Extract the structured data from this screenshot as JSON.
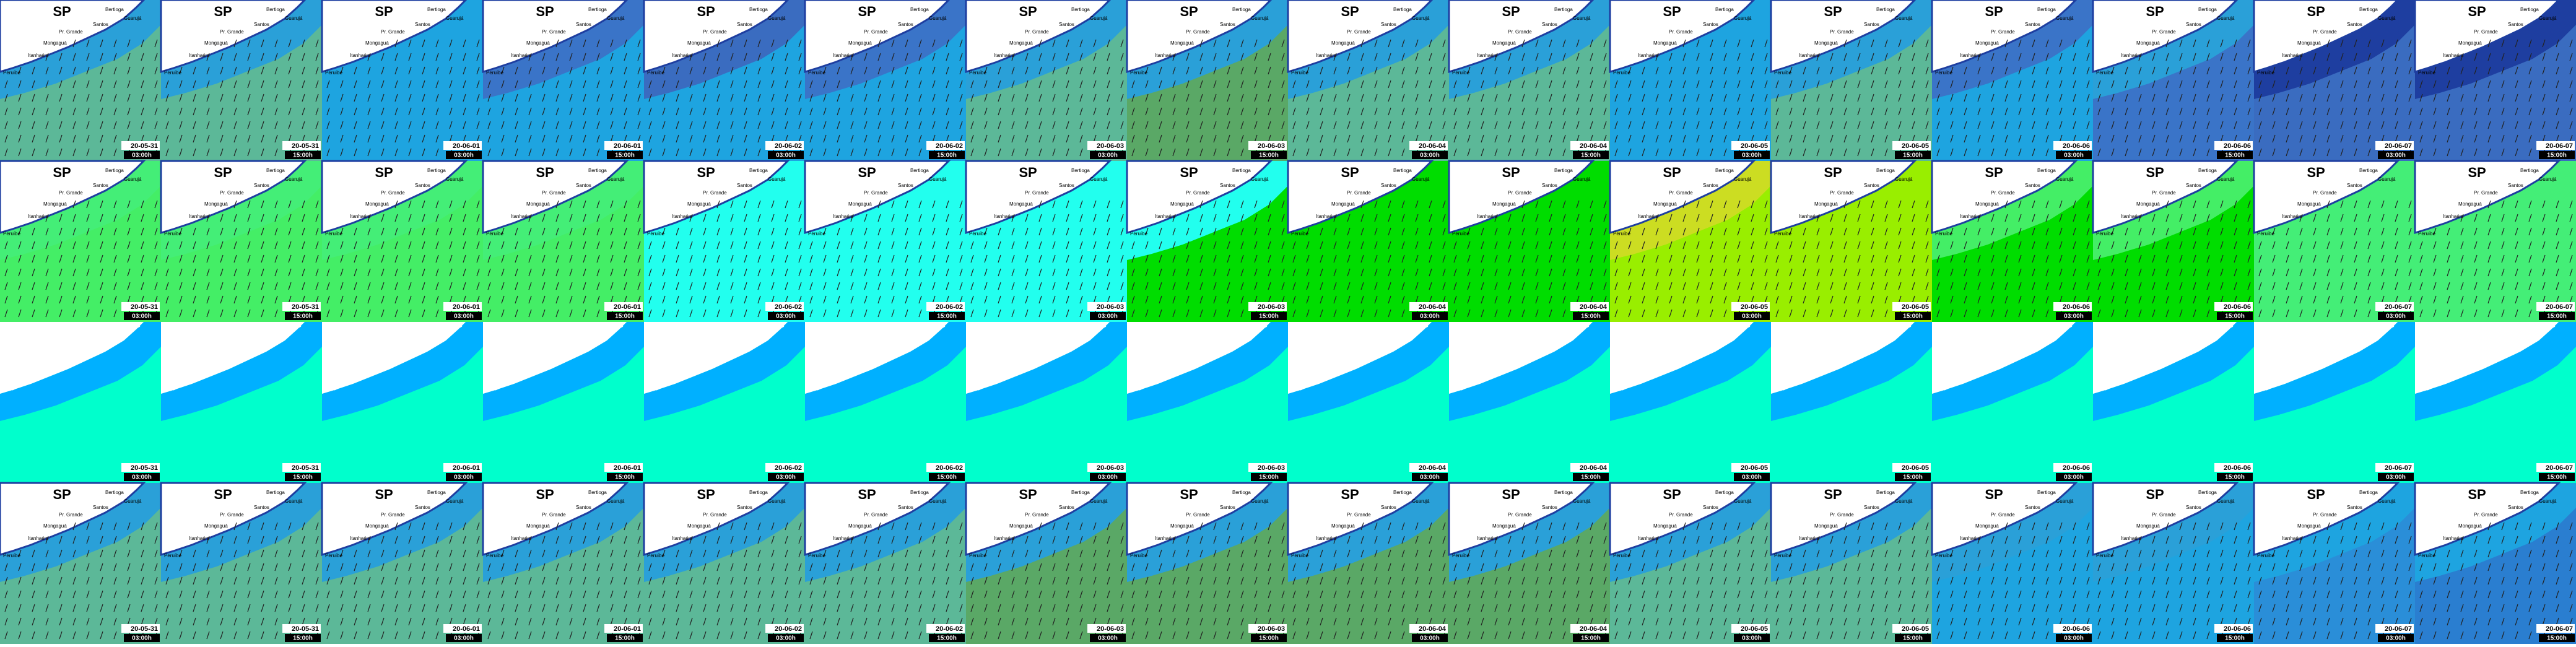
{
  "region": "SP",
  "places": [
    "Bertioga",
    "Guarujá",
    "Santos",
    "Pr. Grande",
    "Mongaguá",
    "Itanhaém",
    "Peruíbe"
  ],
  "frames": [
    {
      "date": "20-05-31",
      "time": "03:00h"
    },
    {
      "date": "20-05-31",
      "time": "15:00h"
    },
    {
      "date": "20-06-01",
      "time": "03:00h"
    },
    {
      "date": "20-06-01",
      "time": "15:00h"
    },
    {
      "date": "20-06-02",
      "time": "03:00h"
    },
    {
      "date": "20-06-02",
      "time": "15:00h"
    },
    {
      "date": "20-06-03",
      "time": "03:00h"
    },
    {
      "date": "20-06-03",
      "time": "15:00h"
    },
    {
      "date": "20-06-04",
      "time": "03:00h"
    },
    {
      "date": "20-06-04",
      "time": "15:00h"
    },
    {
      "date": "20-06-05",
      "time": "03:00h"
    },
    {
      "date": "20-06-05",
      "time": "15:00h"
    },
    {
      "date": "20-06-06",
      "time": "03:00h"
    },
    {
      "date": "20-06-06",
      "time": "15:00h"
    },
    {
      "date": "20-06-07",
      "time": "03:00h"
    },
    {
      "date": "20-06-07",
      "time": "15:00h"
    }
  ],
  "rows": [
    {
      "labels": true,
      "arrows": true,
      "colors": [
        [
          "#5cb898",
          "#2aa0d8"
        ],
        [
          "#5cb898",
          "#2aa0d8"
        ],
        [
          "#1ea4e0",
          "#1ea4e0"
        ],
        [
          "#1ea4e0",
          "#3a74c8"
        ],
        [
          "#1ea4e0",
          "#3a6cc0"
        ],
        [
          "#1ea4e0",
          "#3a74c8"
        ],
        [
          "#5cb898",
          "#2aa0d8"
        ],
        [
          "#5aa866",
          "#2aa0d8"
        ],
        [
          "#5cb898",
          "#2aa0d8"
        ],
        [
          "#5cb898",
          "#2aa0d8"
        ],
        [
          "#1ea4e0",
          "#1ea4e0"
        ],
        [
          "#5cb898",
          "#2aa0d8"
        ],
        [
          "#1ea4e0",
          "#3a74c8"
        ],
        [
          "#3a74c8",
          "#2aa0d8"
        ],
        [
          "#3a6cc0",
          "#1e3ea0"
        ],
        [
          "#3a6cc0",
          "#1e3ea0"
        ]
      ]
    },
    {
      "labels": true,
      "arrows": true,
      "colors": [
        [
          "#44ee66",
          "#44ee77"
        ],
        [
          "#44ee66",
          "#44ee77"
        ],
        [
          "#44ee66",
          "#44ee77"
        ],
        [
          "#44ee66",
          "#44ee77"
        ],
        [
          "#22ffee",
          "#22ffee"
        ],
        [
          "#22ffee",
          "#22ffee"
        ],
        [
          "#22ffee",
          "#22ffee"
        ],
        [
          "#00dd00",
          "#22ffee"
        ],
        [
          "#00dd00",
          "#00dd00"
        ],
        [
          "#00dd00",
          "#00dd00"
        ],
        [
          "#99ee00",
          "#ccdd22"
        ],
        [
          "#99ee00",
          "#99ee00"
        ],
        [
          "#00dd00",
          "#44ee66"
        ],
        [
          "#00dd00",
          "#44ee66"
        ],
        [
          "#44ee77",
          "#44ee77"
        ],
        [
          "#44ee77",
          "#44ee77"
        ]
      ]
    },
    {
      "labels": false,
      "arrows": false,
      "colors": [
        [
          "#00ffcc",
          "#00b0ff"
        ],
        [
          "#00ffcc",
          "#00b0ff"
        ],
        [
          "#00ffcc",
          "#00b0ff"
        ],
        [
          "#00ffcc",
          "#00b0ff"
        ],
        [
          "#00ffcc",
          "#00b0ff"
        ],
        [
          "#00ffcc",
          "#00b0ff"
        ],
        [
          "#00ffcc",
          "#00b0ff"
        ],
        [
          "#00ffcc",
          "#00b0ff"
        ],
        [
          "#00ffcc",
          "#00b0ff"
        ],
        [
          "#00ffcc",
          "#00b0ff"
        ],
        [
          "#00ffcc",
          "#00b0ff"
        ],
        [
          "#00ffcc",
          "#00b0ff"
        ],
        [
          "#00ffcc",
          "#00b0ff"
        ],
        [
          "#00ffcc",
          "#00b0ff"
        ],
        [
          "#00ffcc",
          "#00b0ff"
        ],
        [
          "#00ffcc",
          "#00b0ff"
        ]
      ]
    },
    {
      "labels": true,
      "arrows": true,
      "colors": [
        [
          "#5cb898",
          "#2aa0d8"
        ],
        [
          "#5cb898",
          "#2aa0d8"
        ],
        [
          "#5cb898",
          "#2aa0d8"
        ],
        [
          "#5cb898",
          "#2aa0d8"
        ],
        [
          "#5cb898",
          "#2aa0d8"
        ],
        [
          "#5cb898",
          "#2aa0d8"
        ],
        [
          "#5aa866",
          "#2aa0d8"
        ],
        [
          "#5aa866",
          "#2aa0d8"
        ],
        [
          "#5aa866",
          "#2aa0d8"
        ],
        [
          "#5aa866",
          "#2aa0d8"
        ],
        [
          "#5cb898",
          "#2aa0d8"
        ],
        [
          "#5cb898",
          "#2aa0d8"
        ],
        [
          "#1ea4e0",
          "#2aa0d8"
        ],
        [
          "#1ea4e0",
          "#2aa0d8"
        ],
        [
          "#2a8ed8",
          "#1ea4e0"
        ],
        [
          "#2a7ed0",
          "#1ea4e0"
        ]
      ]
    }
  ]
}
